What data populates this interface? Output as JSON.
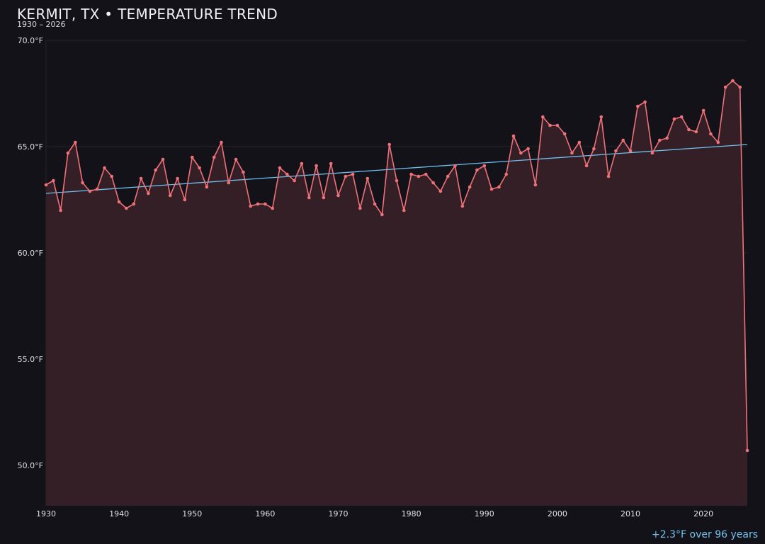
{
  "chart_data": {
    "type": "line",
    "title": "KERMIT, TX • TEMPERATURE TREND",
    "subtitle": "1930 – 2026",
    "trend_note": "+2.3°F over 96 years",
    "xlim": [
      1930,
      2026
    ],
    "ylim": [
      48.1,
      70.0
    ],
    "x_ticks": [
      1930,
      1940,
      1950,
      1960,
      1970,
      1980,
      1990,
      2000,
      2010,
      2020
    ],
    "x_tick_labels": [
      "1930",
      "1940",
      "1950",
      "1960",
      "1970",
      "1980",
      "1990",
      "2000",
      "2010",
      "2020"
    ],
    "y_ticks": [
      50,
      55,
      60,
      65,
      70
    ],
    "y_tick_labels": [
      "50.0°F",
      "55.0°F",
      "60.0°F",
      "65.0°F",
      "70.0°F"
    ],
    "grid": true,
    "colors": {
      "background": "#131218",
      "line": "#f07178",
      "fill": "#341f26",
      "trend": "#6ec1f0",
      "grid": "#26242c"
    },
    "series": [
      {
        "x": [
          1930,
          1931,
          1932,
          1933,
          1934,
          1935,
          1936,
          1937,
          1938,
          1939,
          1940,
          1941,
          1942,
          1943,
          1944,
          1945,
          1946,
          1947,
          1948,
          1949,
          1950,
          1951,
          1952,
          1953,
          1954,
          1955,
          1956,
          1957,
          1958,
          1959,
          1960,
          1961,
          1962,
          1963,
          1964,
          1965,
          1966,
          1967,
          1968,
          1969,
          1970,
          1971,
          1972,
          1973,
          1974,
          1975,
          1976,
          1977,
          1978,
          1979,
          1980,
          1981,
          1982,
          1983,
          1984,
          1985,
          1986,
          1987,
          1988,
          1989,
          1990,
          1991,
          1992,
          1993,
          1994,
          1995,
          1996,
          1997,
          1998,
          1999,
          2000,
          2001,
          2002,
          2003,
          2004,
          2005,
          2006,
          2007,
          2008,
          2009,
          2010,
          2011,
          2012,
          2013,
          2014,
          2015,
          2016,
          2017,
          2018,
          2019,
          2020,
          2021,
          2022,
          2023,
          2024,
          2025,
          2026
        ],
        "values": [
          63.2,
          63.4,
          62.0,
          64.7,
          65.2,
          63.3,
          62.9,
          63.0,
          64.0,
          63.6,
          62.4,
          62.1,
          62.3,
          63.5,
          62.8,
          63.9,
          64.4,
          62.7,
          63.5,
          62.5,
          64.5,
          64.0,
          63.1,
          64.5,
          65.2,
          63.3,
          64.4,
          63.8,
          62.2,
          62.3,
          62.3,
          62.1,
          64.0,
          63.7,
          63.4,
          64.2,
          62.6,
          64.1,
          62.6,
          64.2,
          62.7,
          63.6,
          63.7,
          62.1,
          63.5,
          62.3,
          61.8,
          65.1,
          63.4,
          62.0,
          63.7,
          63.6,
          63.7,
          63.3,
          62.9,
          63.6,
          64.1,
          62.2,
          63.1,
          63.9,
          64.1,
          63.0,
          63.1,
          63.7,
          65.5,
          64.7,
          64.9,
          63.2,
          66.4,
          66.0,
          66.0,
          65.6,
          64.7,
          65.2,
          64.1,
          64.9,
          66.4,
          63.6,
          64.8,
          65.3,
          64.8,
          66.9,
          67.1,
          64.7,
          65.3,
          65.4,
          66.3,
          66.4,
          65.8,
          65.7,
          66.7,
          65.6,
          65.2,
          67.8,
          68.1,
          67.8,
          50.7
        ]
      }
    ],
    "trend": {
      "start": [
        1930,
        62.8
      ],
      "end": [
        2026,
        65.1
      ]
    }
  }
}
